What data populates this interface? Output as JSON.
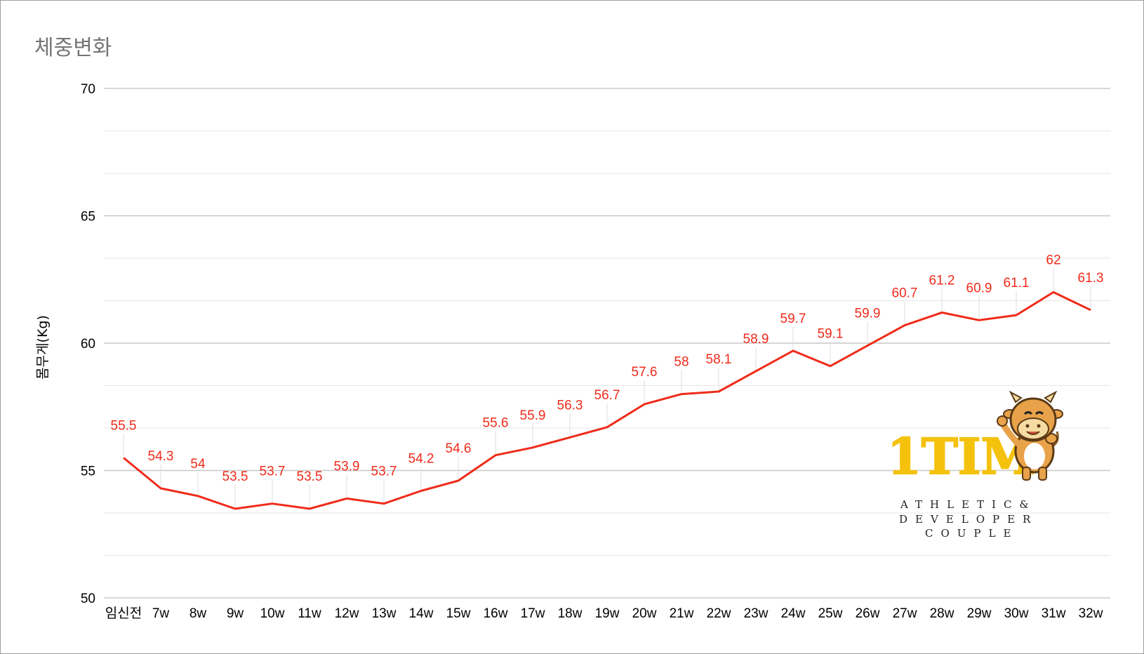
{
  "chart_data": {
    "type": "line",
    "title": "체중변화",
    "xlabel": "",
    "ylabel": "몸무게(Kg)",
    "categories": [
      "임신전",
      "7w",
      "8w",
      "9w",
      "10w",
      "11w",
      "12w",
      "13w",
      "14w",
      "15w",
      "16w",
      "17w",
      "18w",
      "19w",
      "20w",
      "21w",
      "22w",
      "23w",
      "24w",
      "25w",
      "26w",
      "27w",
      "28w",
      "29w",
      "30w",
      "31w",
      "32w"
    ],
    "series": [
      {
        "color": "#ef2b1a",
        "values": [
          55.5,
          54.3,
          54,
          53.5,
          53.7,
          53.5,
          53.9,
          53.7,
          54.2,
          54.6,
          55.6,
          55.9,
          56.3,
          56.7,
          57.6,
          58,
          58.1,
          58.9,
          59.7,
          59.1,
          59.9,
          60.7,
          61.2,
          60.9,
          61.1,
          62,
          61.3
        ]
      }
    ],
    "ylim": [
      50,
      70
    ],
    "yticks": [
      50,
      55,
      60,
      65,
      70
    ],
    "grid": true,
    "data_labels": true
  },
  "watermark": {
    "logo": "1TIM",
    "tagline": [
      "ATHLETIC&",
      "DEVELOPER",
      "COUPLE"
    ]
  }
}
